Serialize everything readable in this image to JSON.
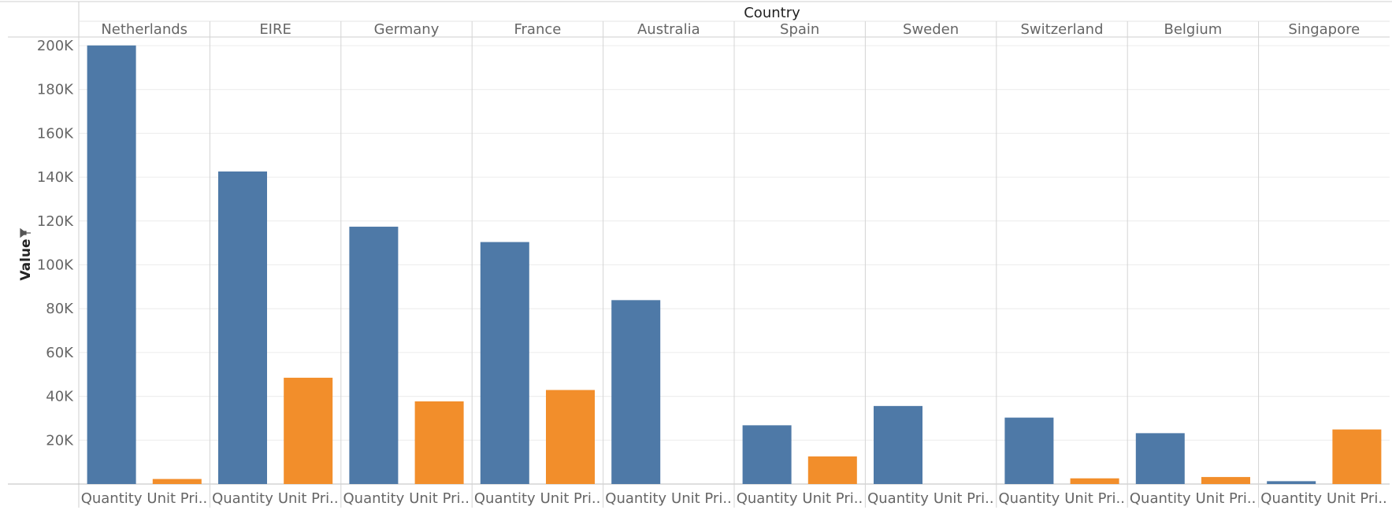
{
  "chart_data": {
    "type": "bar",
    "title": "Country",
    "ylabel": "Value",
    "ylabel_icon": "pin-icon",
    "ylim": [
      0,
      210000
    ],
    "yticks": [
      20000,
      40000,
      60000,
      80000,
      100000,
      120000,
      140000,
      160000,
      180000,
      200000
    ],
    "ytick_labels": [
      "20K",
      "40K",
      "60K",
      "80K",
      "100K",
      "120K",
      "140K",
      "160K",
      "180K",
      "200K"
    ],
    "grid": true,
    "categories": [
      "Netherlands",
      "EIRE",
      "Germany",
      "France",
      "Australia",
      "Spain",
      "Sweden",
      "Switzerland",
      "Belgium",
      "Singapore"
    ],
    "measure_labels": [
      "Quantity",
      "Unit Pri.."
    ],
    "series": [
      {
        "name": "Quantity",
        "color": "#4e79a7",
        "values": [
          200100,
          142600,
          117400,
          110400,
          83900,
          26800,
          35600,
          30300,
          23200,
          1300
        ]
      },
      {
        "name": "Unit Price",
        "color": "#f28e2b",
        "values": [
          2300,
          48500,
          37700,
          42900,
          0,
          12600,
          0,
          2600,
          3200,
          24900
        ]
      }
    ]
  }
}
